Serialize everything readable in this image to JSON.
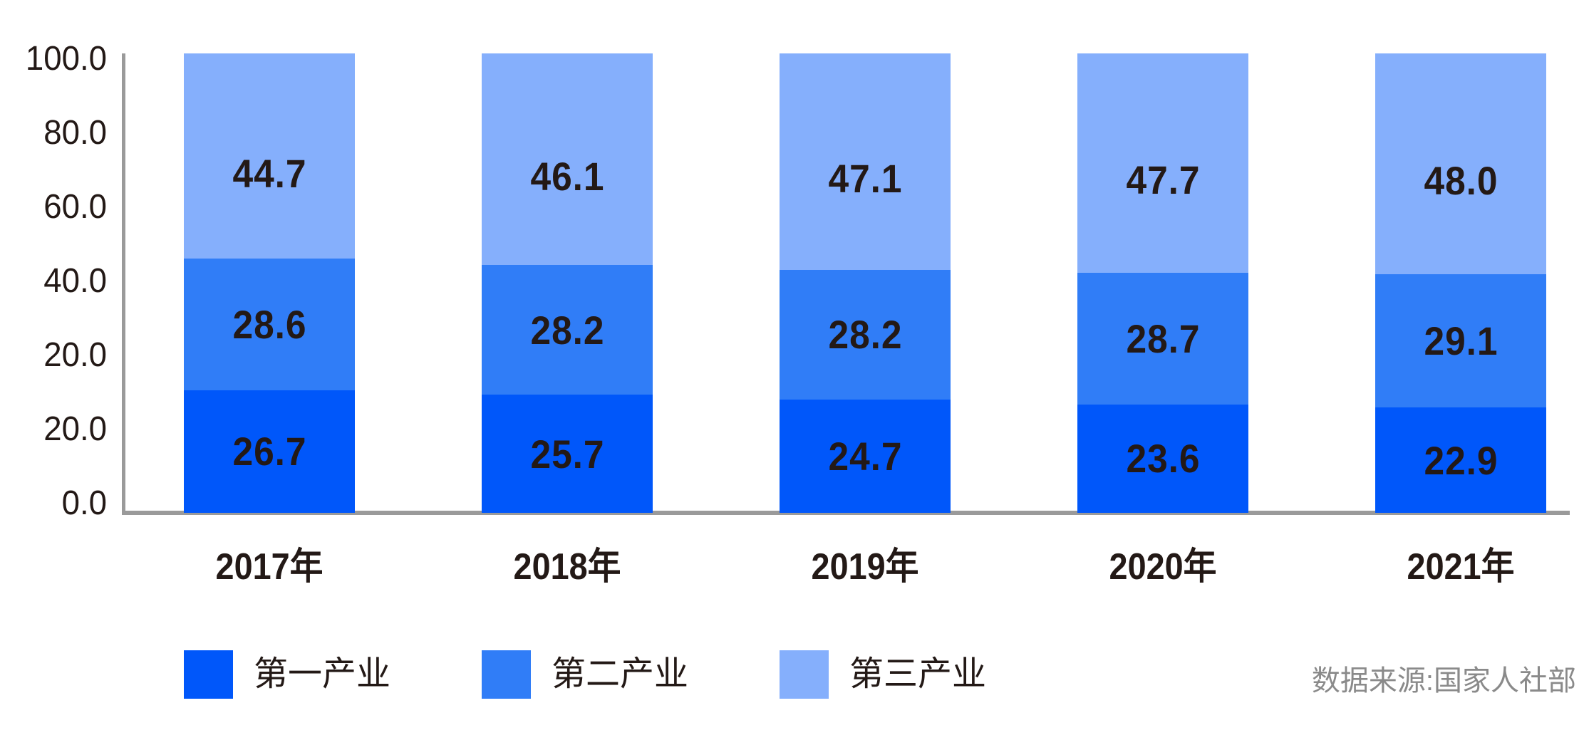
{
  "chart_data": {
    "type": "bar",
    "stacked": true,
    "title": "",
    "xlabel": "",
    "ylabel": "",
    "categories": [
      "2017年",
      "2018年",
      "2019年",
      "2020年",
      "2021年"
    ],
    "series": [
      {
        "name": "第一产业",
        "color": "#0057FA",
        "values": [
          26.7,
          25.7,
          24.7,
          23.6,
          22.9
        ]
      },
      {
        "name": "第二产业",
        "color": "#307DF7",
        "values": [
          28.6,
          28.2,
          28.2,
          28.7,
          29.1
        ]
      },
      {
        "name": "第三产业",
        "color": "#85AFFC",
        "values": [
          44.7,
          46.1,
          47.1,
          47.7,
          48.0
        ]
      }
    ],
    "value_label_decimals": 1,
    "y_axis": {
      "range": [
        0,
        100
      ],
      "tick_labels": [
        "100.0",
        "80.0",
        "60.0",
        "40.0",
        "20.0",
        "20.0",
        "0.0"
      ],
      "grid": false
    },
    "legend_position": "bottom-left",
    "source_note": "数据来源:国家人社部"
  },
  "colors": {
    "background": "#FFFFFF",
    "axis_line": "#9A9A9A",
    "label_text": "#231916",
    "source_text": "#8A8A8A"
  }
}
